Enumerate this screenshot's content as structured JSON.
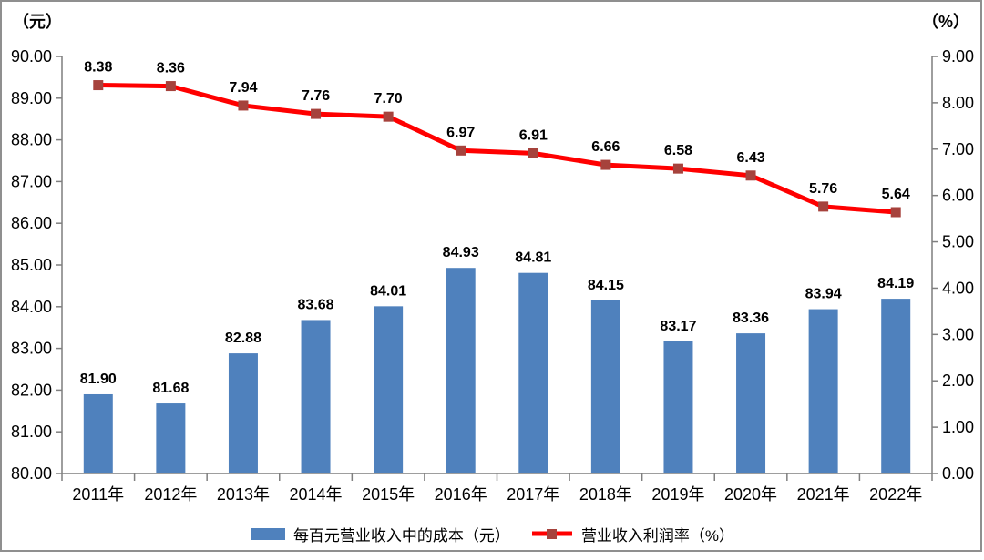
{
  "frame": {
    "left_axis_title": "（元）",
    "right_axis_title": "（%）"
  },
  "legend": {
    "items": [
      {
        "label": "每百元营业收入中的成本（元）",
        "type": "bar",
        "color": "#4F81BD"
      },
      {
        "label": "营业收入利润率（%）",
        "type": "line",
        "color": "#FF0000",
        "marker_color": "#A6423C"
      }
    ]
  },
  "chart_data": {
    "type": "combo",
    "categories": [
      "2011年",
      "2012年",
      "2013年",
      "2014年",
      "2015年",
      "2016年",
      "2017年",
      "2018年",
      "2019年",
      "2020年",
      "2021年",
      "2022年"
    ],
    "series": [
      {
        "name": "每百元营业收入中的成本（元）",
        "type": "bar",
        "axis": "left",
        "color": "#4F81BD",
        "label_color": "#0070C0",
        "values": [
          81.9,
          81.68,
          82.88,
          83.68,
          84.01,
          84.93,
          84.81,
          84.15,
          83.17,
          83.36,
          83.94,
          84.19
        ]
      },
      {
        "name": "营业收入利润率（%）",
        "type": "line",
        "axis": "right",
        "color": "#FF0000",
        "marker_color": "#A6423C",
        "label_color": "#FF0000",
        "values": [
          8.38,
          8.36,
          7.94,
          7.76,
          7.7,
          6.97,
          6.91,
          6.66,
          6.58,
          6.43,
          5.76,
          5.64
        ]
      }
    ],
    "left_axis": {
      "title": "（元）",
      "min": 80,
      "max": 90,
      "step": 1,
      "decimals": 2
    },
    "right_axis": {
      "title": "（%）",
      "min": 0,
      "max": 9,
      "step": 1,
      "decimals": 2
    },
    "grid": false,
    "legend_position": "bottom",
    "title": ""
  }
}
